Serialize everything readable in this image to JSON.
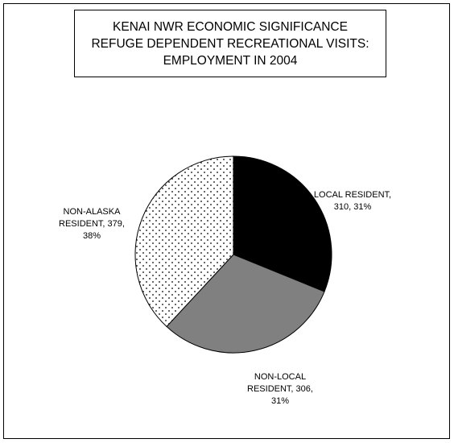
{
  "chart_data": {
    "type": "pie",
    "title": "KENAI NWR ECONOMIC SIGNIFICANCE REFUGE DEPENDENT RECREATIONAL VISITS: EMPLOYMENT IN 2004",
    "title_lines": [
      "KENAI NWR ECONOMIC SIGNIFICANCE",
      "REFUGE DEPENDENT RECREATIONAL VISITS:",
      "EMPLOYMENT IN 2004"
    ],
    "slices": [
      {
        "name": "LOCAL RESIDENT",
        "value": 310,
        "percent": "31%",
        "label_lines": [
          "LOCAL RESIDENT,",
          "310, 31%"
        ],
        "color": "#000000",
        "fill_pattern": "solid"
      },
      {
        "name": "NON-LOCAL RESIDENT",
        "value": 306,
        "percent": "31%",
        "label_lines": [
          "NON-LOCAL",
          "RESIDENT, 306,",
          "31%"
        ],
        "color": "#808080",
        "fill_pattern": "solid"
      },
      {
        "name": "NON-ALASKA RESIDENT",
        "value": 379,
        "percent": "38%",
        "label_lines": [
          "NON-ALASKA",
          "RESIDENT, 379,",
          "38%"
        ],
        "color": "#ffffff",
        "fill_pattern": "dots"
      }
    ],
    "start_angle": "12 o'clock",
    "direction": "clockwise",
    "legend": "none"
  }
}
